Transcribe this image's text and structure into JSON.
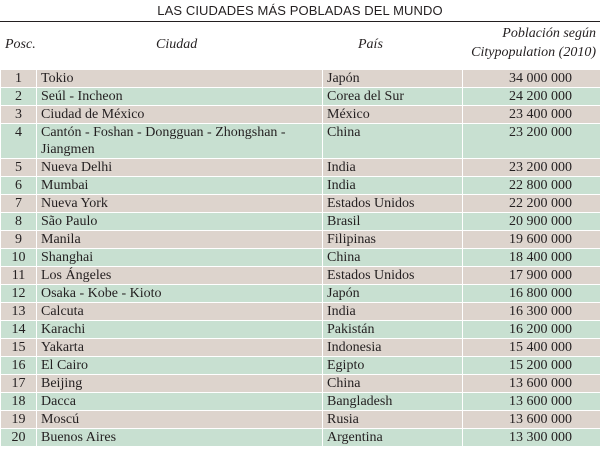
{
  "title": "LAS CIUDADES MÁS POBLADAS DEL MUNDO",
  "headers": {
    "pos": "Posc.",
    "city": "Ciudad",
    "country": "País",
    "pop_line1": "Población según",
    "pop_line2": "Citypopulation (2010)"
  },
  "colors": {
    "row_odd": "#ddd4cd",
    "row_even": "#c8e0d1",
    "text": "#231f20"
  },
  "rows": [
    {
      "pos": "1",
      "city": "Tokio",
      "country": "Japón",
      "population": "34 000 000"
    },
    {
      "pos": "2",
      "city": "Seúl - Incheon",
      "country": "Corea del Sur",
      "population": "24 200 000"
    },
    {
      "pos": "3",
      "city": "Ciudad de México",
      "country": "México",
      "population": "23 400 000"
    },
    {
      "pos": "4",
      "city": "Cantón - Foshan - Dongguan - Zhongshan - Jiangmen",
      "country": "China",
      "population": "23 200 000"
    },
    {
      "pos": "5",
      "city": "Nueva Delhi",
      "country": "India",
      "population": "23 200 000"
    },
    {
      "pos": "6",
      "city": "Mumbai",
      "country": "India",
      "population": "22 800 000"
    },
    {
      "pos": "7",
      "city": "Nueva York",
      "country": "Estados Unidos",
      "population": "22 200 000"
    },
    {
      "pos": "8",
      "city": "São Paulo",
      "country": "Brasil",
      "population": "20 900 000"
    },
    {
      "pos": "9",
      "city": "Manila",
      "country": "Filipinas",
      "population": "19 600 000"
    },
    {
      "pos": "10",
      "city": "Shanghai",
      "country": "China",
      "population": "18 400 000"
    },
    {
      "pos": "11",
      "city": "Los Ángeles",
      "country": "Estados Unidos",
      "population": "17 900 000"
    },
    {
      "pos": "12",
      "city": "Osaka - Kobe - Kioto",
      "country": "Japón",
      "population": "16 800 000"
    },
    {
      "pos": "13",
      "city": "Calcuta",
      "country": "India",
      "population": "16 300 000"
    },
    {
      "pos": "14",
      "city": "Karachi",
      "country": "Pakistán",
      "population": "16 200 000"
    },
    {
      "pos": "15",
      "city": "Yakarta",
      "country": "Indonesia",
      "population": "15 400 000"
    },
    {
      "pos": "16",
      "city": "El Cairo",
      "country": "Egipto",
      "population": "15 200 000"
    },
    {
      "pos": "17",
      "city": "Beijing",
      "country": "China",
      "population": "13 600 000"
    },
    {
      "pos": "18",
      "city": "Dacca",
      "country": "Bangladesh",
      "population": "13 600 000"
    },
    {
      "pos": "19",
      "city": "Moscú",
      "country": "Rusia",
      "population": "13 600 000"
    },
    {
      "pos": "20",
      "city": "Buenos Aires",
      "country": "Argentina",
      "population": "13 300 000"
    }
  ]
}
